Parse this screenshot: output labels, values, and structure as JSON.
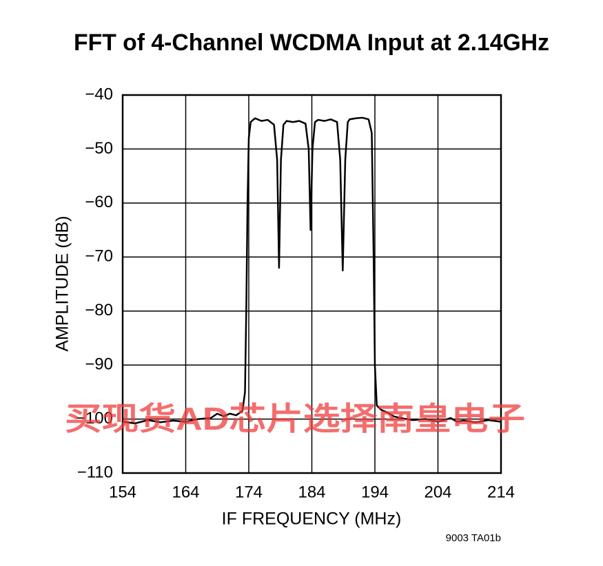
{
  "chart_data": {
    "type": "line",
    "title": "FFT of 4-Channel WCDMA Input at 2.14GHz",
    "x_label": "IF FREQUENCY (MHz)",
    "y_label": "AMPLITUDE (dB)",
    "figure_code": "9003 TA01b",
    "watermark": "买现货AD芯片选择南皇电子",
    "color": "#000000",
    "grid": true,
    "xlim": [
      154,
      214
    ],
    "xticks": [
      154,
      164,
      174,
      184,
      194,
      204,
      214
    ],
    "ylim": [
      -110,
      -40
    ],
    "yticks": [
      {
        "value": -40,
        "label": "−40"
      },
      {
        "value": -50,
        "label": "−50"
      },
      {
        "value": -60,
        "label": "−60"
      },
      {
        "value": -70,
        "label": "−70"
      },
      {
        "value": -80,
        "label": "−80"
      },
      {
        "value": -90,
        "label": "−90"
      },
      {
        "value": -100,
        "label": "−100"
      },
      {
        "value": -110,
        "label": "−110"
      }
    ],
    "x": [
      154,
      156,
      158,
      160,
      162,
      164,
      166,
      168,
      169,
      170,
      171,
      172,
      173,
      173.4,
      173.6,
      173.8,
      174.0,
      174.3,
      175,
      176,
      177,
      178,
      178.5,
      178.8,
      179.1,
      179.5,
      180,
      181,
      182,
      183,
      183.5,
      183.8,
      184.1,
      184.5,
      185,
      186,
      187,
      188,
      188.5,
      188.9,
      189.3,
      189.7,
      190,
      191,
      192,
      193,
      193.5,
      193.8,
      194.0,
      194.3,
      195,
      196,
      197,
      198,
      200,
      202,
      204,
      205,
      206,
      207,
      208,
      210,
      212,
      214
    ],
    "values": [
      -100.5,
      -100.8,
      -100.2,
      -100.6,
      -100.3,
      -100.5,
      -100.0,
      -99.8,
      -99.0,
      -99.5,
      -99.0,
      -99.3,
      -98.5,
      -95,
      -80,
      -60,
      -48,
      -45,
      -44.3,
      -44.8,
      -44.6,
      -45.5,
      -52,
      -72,
      -52,
      -45.5,
      -44.8,
      -45.0,
      -44.8,
      -45.3,
      -50,
      -65,
      -50,
      -45,
      -44.6,
      -44.8,
      -44.5,
      -45.0,
      -52,
      -72.5,
      -52,
      -45,
      -44.5,
      -44.3,
      -44.2,
      -44.5,
      -47,
      -70,
      -90,
      -97.5,
      -98.3,
      -98.8,
      -99.5,
      -99.8,
      -100.2,
      -100.0,
      -100.5,
      -100.2,
      -99.8,
      -100.5,
      -100.3,
      -100.6,
      -100.2,
      -100.5
    ]
  }
}
